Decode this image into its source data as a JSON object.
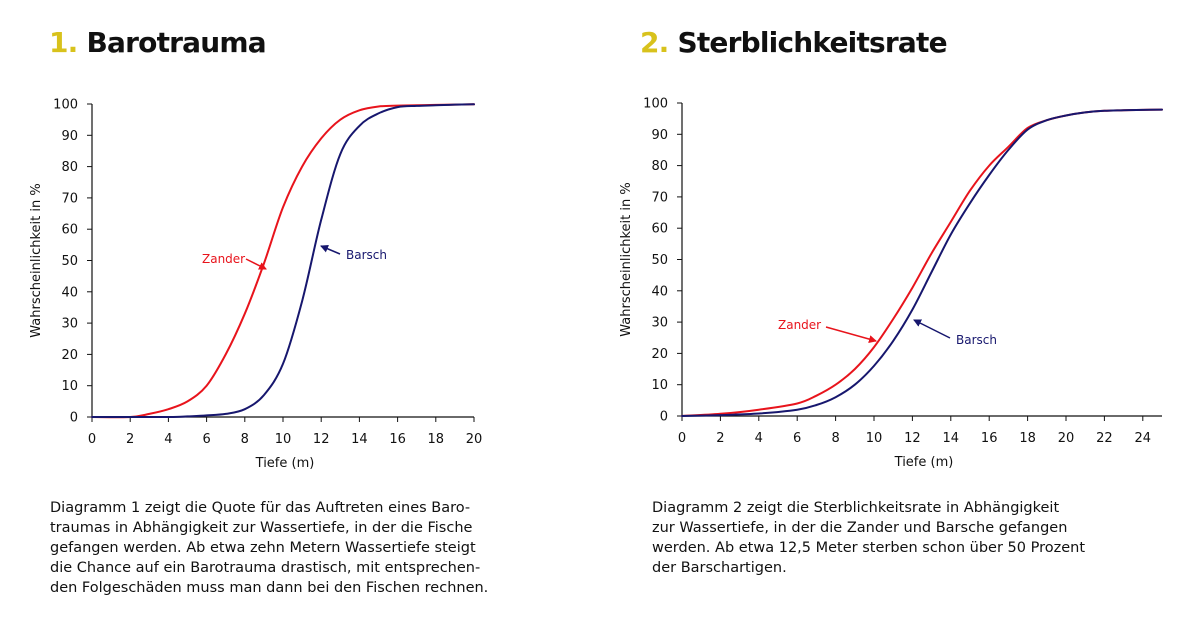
{
  "chart_data": [
    {
      "type": "line",
      "number": "1.",
      "title": "Barotrauma",
      "xlabel": "Tiefe (m)",
      "ylabel": "Wahrscheinlichkeit in %",
      "xlim": [
        0,
        20
      ],
      "ylim": [
        0,
        100
      ],
      "xticks": [
        0,
        2,
        4,
        6,
        8,
        10,
        12,
        14,
        16,
        18,
        20
      ],
      "yticks": [
        0,
        10,
        20,
        30,
        40,
        50,
        60,
        70,
        80,
        90,
        100
      ],
      "grid": false,
      "series": [
        {
          "name": "Zander",
          "color": "#e8141c",
          "x": [
            0,
            2,
            3,
            4,
            5,
            6,
            7,
            8,
            9,
            10,
            11,
            12,
            13,
            14,
            15,
            16,
            17,
            18,
            19,
            20
          ],
          "y": [
            0,
            0,
            1,
            2.5,
            5,
            10,
            20,
            33,
            49,
            67,
            80,
            89,
            95,
            98,
            99.2,
            99.5,
            99.6,
            99.7,
            99.8,
            99.9
          ]
        },
        {
          "name": "Barsch",
          "color": "#17176e",
          "x": [
            0,
            4,
            5,
            6,
            7,
            8,
            9,
            10,
            11,
            12,
            13,
            14,
            15,
            16,
            17,
            18,
            19,
            20
          ],
          "y": [
            0,
            0,
            0.2,
            0.5,
            1,
            2.5,
            7,
            17,
            37,
            63,
            84,
            93,
            97,
            99,
            99.4,
            99.6,
            99.8,
            99.9
          ]
        }
      ]
    },
    {
      "type": "line",
      "number": "2.",
      "title": "Sterblichkeitsrate",
      "xlabel": "Tiefe (m)",
      "ylabel": "Wahrscheinlichkeit in %",
      "xlim": [
        0,
        25
      ],
      "ylim": [
        0,
        100
      ],
      "xticks": [
        0,
        2,
        4,
        6,
        8,
        10,
        12,
        14,
        16,
        18,
        20,
        22,
        24
      ],
      "yticks": [
        0,
        10,
        20,
        30,
        40,
        50,
        60,
        70,
        80,
        90,
        100
      ],
      "grid": false,
      "series": [
        {
          "name": "Zander",
          "color": "#e8141c",
          "x": [
            0,
            2,
            4,
            6,
            7,
            8,
            9,
            10,
            11,
            12,
            13,
            14,
            15,
            16,
            17,
            18,
            19,
            20,
            21,
            22,
            23,
            24,
            25
          ],
          "y": [
            0,
            0.7,
            2,
            4,
            6.5,
            10,
            15,
            22,
            31,
            41,
            52,
            62,
            72,
            80,
            86,
            92,
            94.5,
            96,
            97,
            97.5,
            97.7,
            97.8,
            97.9
          ]
        },
        {
          "name": "Barsch",
          "color": "#17176e",
          "x": [
            0,
            2,
            4,
            6,
            7,
            8,
            9,
            10,
            11,
            12,
            13,
            14,
            15,
            16,
            17,
            18,
            19,
            20,
            21,
            22,
            23,
            24,
            25
          ],
          "y": [
            0,
            0.3,
            0.8,
            2,
            3.5,
            6,
            10,
            16,
            24,
            34,
            46,
            58,
            68,
            77,
            85,
            91.5,
            94.5,
            96,
            97,
            97.5,
            97.7,
            97.8,
            97.9
          ]
        }
      ]
    }
  ],
  "captions": [
    "Diagramm 1 zeigt die Quote für das Auftreten eines Baro-\ntraumas in Abhängigkeit zur Wassertiefe, in der die Fische\ngefangen werden. Ab etwa zehn Metern Wassertiefe steigt\ndie Chance auf ein Barotrauma drastisch, mit entsprechen-\nden Folgeschäden muss man dann bei den Fischen rechnen.",
    "Diagramm 2 zeigt die Sterblichkeitsrate in Abhängigkeit\nzur Wassertiefe, in der die Zander und Barsche gefangen\nwerden. Ab etwa 12,5 Meter sterben schon über 50 Prozent\nder Barschartigen."
  ]
}
